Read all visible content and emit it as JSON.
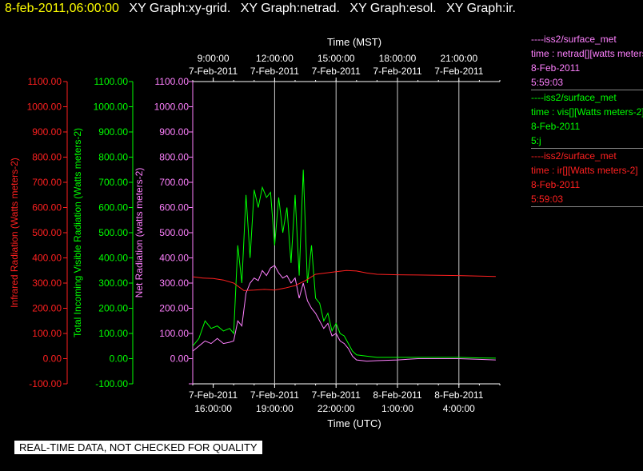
{
  "header": {
    "timestamp": "8-feb-2011,06:00:00",
    "graphs": [
      "XY Graph:xy-grid.",
      "XY Graph:netrad.",
      "XY Graph:esol.",
      "XY Graph:ir."
    ]
  },
  "colors": {
    "ir": "#ff2020",
    "vis": "#00ff00",
    "net": "#ff80ff",
    "axis": "#ffffff"
  },
  "legend": [
    {
      "source": "----iss2/surface_met",
      "variable": "time : netrad[][watts meters-2]",
      "date": "8-Feb-2011",
      "time": "5:59:03",
      "color": "#ff80ff"
    },
    {
      "source": "----iss2/surface_met",
      "variable": "time : vis[][Watts meters-2]",
      "date": "8-Feb-2011",
      "time": "5:j",
      "color": "#00ff00"
    },
    {
      "source": "----iss2/surface_met",
      "variable": "time : ir[][Watts meters-2]",
      "date": "8-Feb-2011",
      "time": "5:59:03",
      "color": "#ff2020"
    }
  ],
  "footer": "REAL-TIME DATA, NOT CHECKED FOR QUALITY",
  "chart_data": {
    "type": "line",
    "top_axis_title": "Time (MST)",
    "bottom_axis_title": "Time (UTC)",
    "x_range_hours_utc": [
      15,
      30
    ],
    "top_ticks": [
      {
        "x": 16,
        "l1": "9:00:00",
        "l2": "7-Feb-2011"
      },
      {
        "x": 19,
        "l1": "12:00:00",
        "l2": "7-Feb-2011"
      },
      {
        "x": 22,
        "l1": "15:00:00",
        "l2": "7-Feb-2011"
      },
      {
        "x": 25,
        "l1": "18:00:00",
        "l2": "7-Feb-2011"
      },
      {
        "x": 28,
        "l1": "21:00:00",
        "l2": "7-Feb-2011"
      }
    ],
    "bottom_ticks": [
      {
        "x": 16,
        "l1": "7-Feb-2011",
        "l2": "16:00:00"
      },
      {
        "x": 19,
        "l1": "7-Feb-2011",
        "l2": "19:00:00"
      },
      {
        "x": 22,
        "l1": "7-Feb-2011",
        "l2": "22:00:00"
      },
      {
        "x": 25,
        "l1": "8-Feb-2011",
        "l2": "1:00:00"
      },
      {
        "x": 28,
        "l1": "8-Feb-2011",
        "l2": "4:00:00"
      }
    ],
    "ylim": [
      -100,
      1100
    ],
    "y_ticks": [
      -100,
      0,
      100,
      200,
      300,
      400,
      500,
      600,
      700,
      800,
      900,
      1000,
      1100
    ],
    "y_axes": [
      {
        "label": "Infrared Radiation (Watts meters-2)",
        "color": "#ff2020",
        "ticks": [
          "-100.00",
          "0.00",
          "100.00",
          "200.00",
          "300.00",
          "400.00",
          "500.00",
          "600.00",
          "700.00",
          "800.00",
          "900.00",
          "1000.00",
          "1100.00"
        ]
      },
      {
        "label": "Total Incoming Visible Radiation (Watts meters-2)",
        "color": "#00ff00",
        "ticks": [
          "-100.00",
          "0.00",
          "100.00",
          "200.00",
          "300.00",
          "400.00",
          "500.00",
          "600.00",
          "700.00",
          "800.00",
          "900.00",
          "1000.00",
          "1100.00"
        ]
      },
      {
        "label": "Net Radiation (watts meters-2)",
        "color": "#ff80ff",
        "ticks": [
          "",
          "0.00",
          "100.00",
          "200.00",
          "300.00",
          "400.00",
          "500.00",
          "600.00",
          "700.00",
          "800.00",
          "900.00",
          "1000.00",
          "1100.00"
        ]
      }
    ],
    "vertical_grid_x": [
      19,
      22,
      25,
      28
    ],
    "series": [
      {
        "key": "vis",
        "x": [
          15.0,
          15.3,
          15.6,
          15.9,
          16.2,
          16.5,
          16.8,
          17.0,
          17.2,
          17.4,
          17.6,
          17.8,
          18.0,
          18.2,
          18.4,
          18.6,
          18.8,
          19.0,
          19.2,
          19.4,
          19.6,
          19.8,
          20.0,
          20.2,
          20.4,
          20.6,
          20.8,
          21.0,
          21.2,
          21.4,
          21.6,
          21.8,
          22.0,
          22.2,
          22.4,
          22.6,
          22.8,
          23.0,
          23.5,
          24.0,
          25.0,
          26.0,
          27.0,
          28.0,
          29.0,
          29.8
        ],
        "y": [
          50,
          80,
          150,
          120,
          130,
          110,
          120,
          100,
          450,
          300,
          650,
          400,
          670,
          600,
          680,
          640,
          660,
          450,
          640,
          500,
          600,
          380,
          650,
          330,
          750,
          300,
          450,
          240,
          220,
          150,
          180,
          110,
          140,
          100,
          90,
          60,
          30,
          15,
          10,
          5,
          5,
          5,
          5,
          5,
          3,
          2
        ]
      },
      {
        "key": "net",
        "x": [
          15.0,
          15.3,
          15.6,
          15.9,
          16.2,
          16.5,
          16.8,
          17.0,
          17.2,
          17.4,
          17.6,
          17.8,
          18.0,
          18.2,
          18.4,
          18.6,
          18.8,
          19.0,
          19.2,
          19.4,
          19.6,
          19.8,
          20.0,
          20.2,
          20.4,
          20.6,
          20.8,
          21.0,
          21.2,
          21.4,
          21.6,
          21.8,
          22.0,
          22.2,
          22.4,
          22.6,
          22.8,
          23.0,
          23.5,
          24.0,
          25.0,
          26.0,
          27.0,
          28.0,
          29.0,
          29.8
        ],
        "y": [
          30,
          50,
          70,
          60,
          80,
          60,
          65,
          70,
          150,
          130,
          260,
          300,
          320,
          310,
          350,
          330,
          360,
          370,
          340,
          320,
          330,
          300,
          320,
          240,
          300,
          230,
          200,
          180,
          150,
          120,
          140,
          90,
          100,
          70,
          60,
          40,
          10,
          -5,
          -10,
          -8,
          -5,
          0,
          0,
          0,
          -3,
          -5
        ]
      },
      {
        "key": "ir",
        "x": [
          15.0,
          15.5,
          16.0,
          16.5,
          17.0,
          17.5,
          18.0,
          18.5,
          19.0,
          19.5,
          20.0,
          20.5,
          21.0,
          21.5,
          22.0,
          22.5,
          23.0,
          23.5,
          24.0,
          25.0,
          26.0,
          27.0,
          28.0,
          29.0,
          29.8
        ],
        "y": [
          325,
          320,
          318,
          312,
          300,
          270,
          272,
          275,
          272,
          280,
          290,
          310,
          335,
          340,
          345,
          350,
          348,
          340,
          335,
          333,
          332,
          331,
          330,
          328,
          326
        ]
      }
    ]
  }
}
